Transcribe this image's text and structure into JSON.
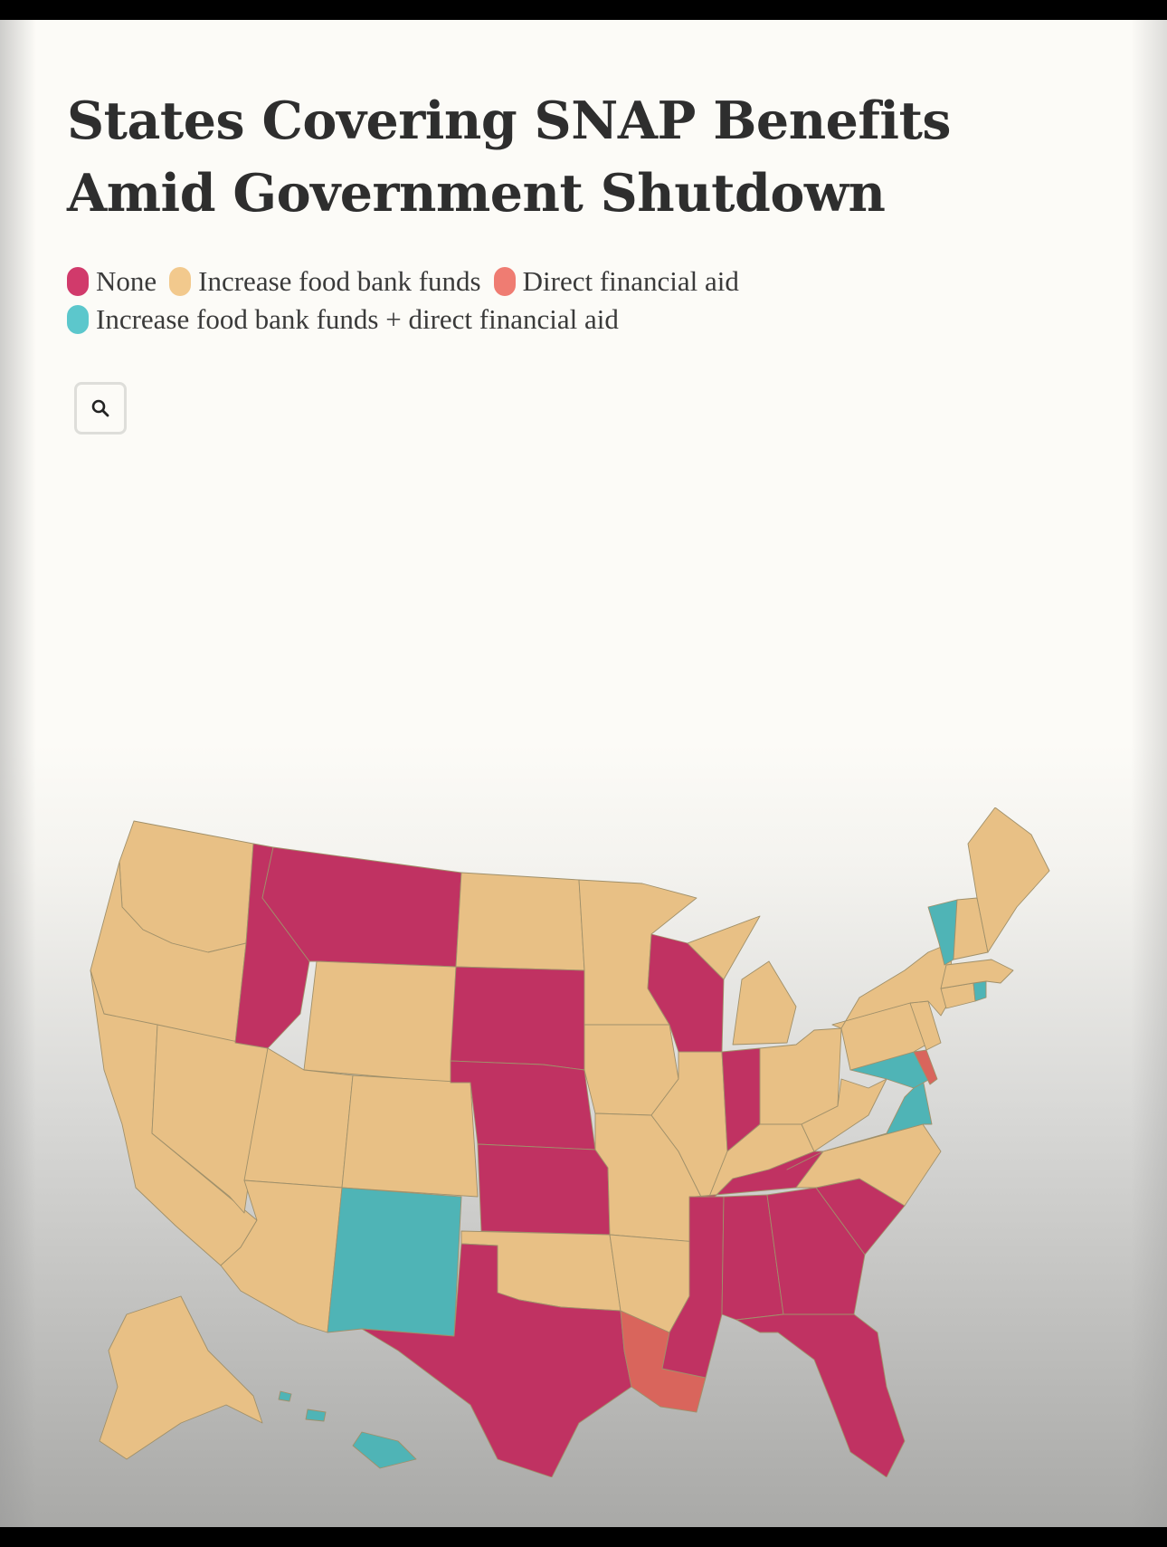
{
  "title": "States Covering SNAP Benefits Amid Government Shutdown",
  "legend": [
    {
      "key": "none",
      "label": "None",
      "color": "#d13a6b"
    },
    {
      "key": "food",
      "label": "Increase food bank funds",
      "color": "#f2c98d"
    },
    {
      "key": "direct",
      "label": "Direct financial aid",
      "color": "#ef7c72"
    },
    {
      "key": "both",
      "label": "Increase food bank funds + direct financial aid",
      "color": "#5cc7cc"
    }
  ],
  "search": {
    "icon": "search-icon"
  },
  "states": {
    "WA": "food",
    "OR": "food",
    "CA": "food",
    "NV": "food",
    "ID": "none",
    "MT": "none",
    "WY": "food",
    "UT": "food",
    "CO": "food",
    "AZ": "food",
    "NM": "both",
    "ND": "food",
    "SD": "none",
    "NE": "none",
    "KS": "none",
    "OK": "food",
    "TX": "none",
    "MN": "food",
    "IA": "food",
    "MO": "food",
    "AR": "food",
    "LA": "direct",
    "WI": "none",
    "IL": "food",
    "MI": "food",
    "IN": "none",
    "OH": "food",
    "KY": "food",
    "TN": "none",
    "MS": "none",
    "AL": "none",
    "GA": "none",
    "FL": "none",
    "SC": "none",
    "NC": "food",
    "VA": "both",
    "WV": "food",
    "MD": "both",
    "DE": "direct",
    "PA": "food",
    "NJ": "food",
    "NY": "food",
    "CT": "food",
    "RI": "both",
    "MA": "food",
    "VT": "both",
    "NH": "food",
    "ME": "food",
    "AK": "food",
    "HI": "both"
  }
}
